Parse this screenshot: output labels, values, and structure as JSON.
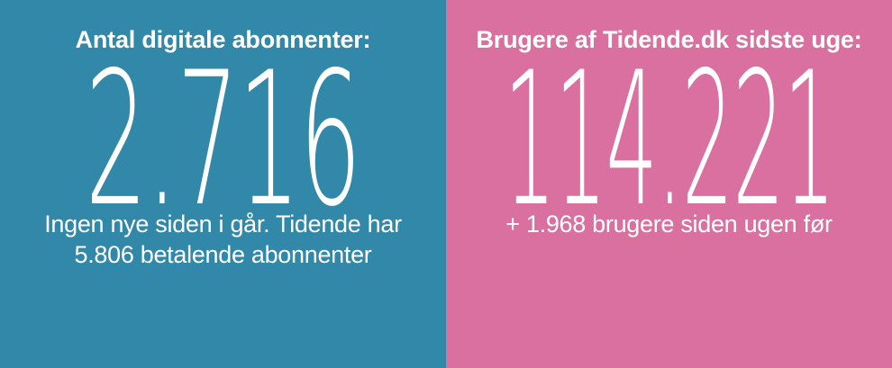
{
  "text_color": "#FFFFFF",
  "panels": [
    {
      "id": "digital-subscribers",
      "background": "#3188A9",
      "heading": "Antal digitale abonnenter:",
      "value": "2.716",
      "note_lines": [
        "Ingen nye siden i går. Tidende har",
        "5.806 betalende abonnenter"
      ]
    },
    {
      "id": "weekly-users",
      "background": "#D9709F",
      "heading": "Brugere af Tidende.dk sidste uge:",
      "value": "114.221",
      "note_lines": [
        "+ 1.968 brugere siden ugen før"
      ]
    }
  ],
  "chart_data": {
    "type": "table",
    "categories": [
      "Antal digitale abonnenter",
      "Brugere af Tidende.dk sidste uge"
    ],
    "values": [
      2716,
      114221
    ],
    "annotations": [
      "Ingen nye siden i går. Tidende har 5.806 betalende abonnenter",
      "+ 1.968 brugere siden ugen før"
    ],
    "related_values": {
      "betalende_abonnenter": 5806,
      "brugere_tilvaekst_siden_ugen_foer": 1968
    }
  }
}
